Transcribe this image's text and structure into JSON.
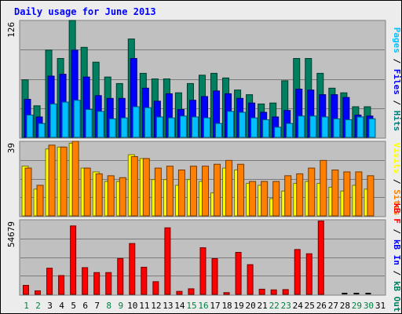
{
  "chart_data": {
    "type": "bar",
    "title": "Daily usage for June 2013",
    "categories": [
      "1",
      "2",
      "3",
      "4",
      "5",
      "6",
      "7",
      "8",
      "9",
      "10",
      "11",
      "12",
      "13",
      "14",
      "15",
      "16",
      "17",
      "18",
      "19",
      "20",
      "21",
      "22",
      "23",
      "24",
      "25",
      "26",
      "27",
      "28",
      "29",
      "30",
      "31"
    ],
    "weekend_days": [
      "1",
      "2",
      "8",
      "9",
      "15",
      "16",
      "22",
      "23",
      "29",
      "30"
    ],
    "panels": [
      {
        "id": "hits-files-pages",
        "ymax": 126,
        "ymax_label": "126",
        "axis_label_parts": [
          {
            "text": "Pages",
            "color": "#00c0ff"
          },
          {
            "text": " / ",
            "color": "#000000"
          },
          {
            "text": "Files",
            "color": "#0000ff"
          },
          {
            "text": " / ",
            "color": "#000000"
          },
          {
            "text": "Hits",
            "color": "#008080"
          }
        ],
        "series": [
          {
            "name": "Hits",
            "color": "#008060",
            "values": [
              62,
              34,
              94,
              85,
              126,
              97,
              81,
              65,
              58,
              106,
              69,
              63,
              63,
              48,
              58,
              67,
              69,
              64,
              51,
              46,
              36,
              37,
              61,
              85,
              85,
              69,
              53,
              48,
              33,
              33,
              0
            ]
          },
          {
            "name": "Files",
            "color": "#0000ff",
            "values": [
              41,
              22,
              66,
              68,
              94,
              65,
              45,
              42,
              42,
              85,
              53,
              39,
              47,
              30,
              40,
              44,
              50,
              47,
              42,
              37,
              27,
              22,
              29,
              52,
              51,
              46,
              46,
              43,
              24,
              23,
              0
            ]
          },
          {
            "name": "Pages",
            "color": "#00c0ff",
            "values": [
              24,
              15,
              36,
              38,
              40,
              30,
              28,
              20,
              21,
              33,
              32,
              22,
              21,
              23,
              22,
              21,
              15,
              28,
              27,
              21,
              19,
              11,
              15,
              23,
              23,
              22,
              20,
              19,
              22,
              20,
              0
            ]
          }
        ]
      },
      {
        "id": "visits-sites",
        "ymax": 39,
        "ymax_label": "39",
        "axis_label_parts": [
          {
            "text": "Visits",
            "color": "#ffff00"
          },
          {
            "text": " / ",
            "color": "#000000"
          },
          {
            "text": "Sites",
            "color": "#ff8000"
          }
        ],
        "series": [
          {
            "name": "Visits",
            "color": "#ffff00",
            "values": [
              26,
              14,
              35,
              36,
              38,
              25,
              23,
              18,
              18,
              32,
              30,
              19,
              19,
              16,
              19,
              18,
              12,
              25,
              24,
              17,
              16,
              9,
              13,
              17,
              18,
              17,
              15,
              13,
              16,
              14,
              0
            ]
          },
          {
            "name": "Sites",
            "color": "#ff8000",
            "values": [
              25,
              16,
              37,
              36,
              39,
              25,
              22,
              21,
              20,
              31,
              30,
              25,
              26,
              24,
              26,
              26,
              27,
              29,
              27,
              18,
              18,
              18,
              21,
              22,
              25,
              29,
              24,
              23,
              23,
              21,
              0
            ]
          }
        ]
      },
      {
        "id": "kbytes",
        "ymax": 54679,
        "ymax_label": "54679",
        "axis_label_parts": [
          {
            "text": "kB F",
            "color": "#ff0000"
          },
          {
            "text": " / ",
            "color": "#000000"
          },
          {
            "text": "kB In",
            "color": "#0000ff"
          },
          {
            "text": " / ",
            "color": "#000000"
          },
          {
            "text": "kB Out",
            "color": "#008060"
          }
        ],
        "series": [
          {
            "name": "kB F",
            "color": "#ff0000",
            "values": [
              6600,
              2600,
              19200,
              13800,
              50200,
              19600,
              16000,
              16000,
              26300,
              37300,
              19900,
              9300,
              48800,
              2200,
              4100,
              34200,
              26200,
              1300,
              30800,
              21800,
              3800,
              3300,
              3500,
              32900,
              29800,
              53800,
              0,
              0,
              0,
              0,
              0
            ]
          }
        ]
      }
    ]
  }
}
